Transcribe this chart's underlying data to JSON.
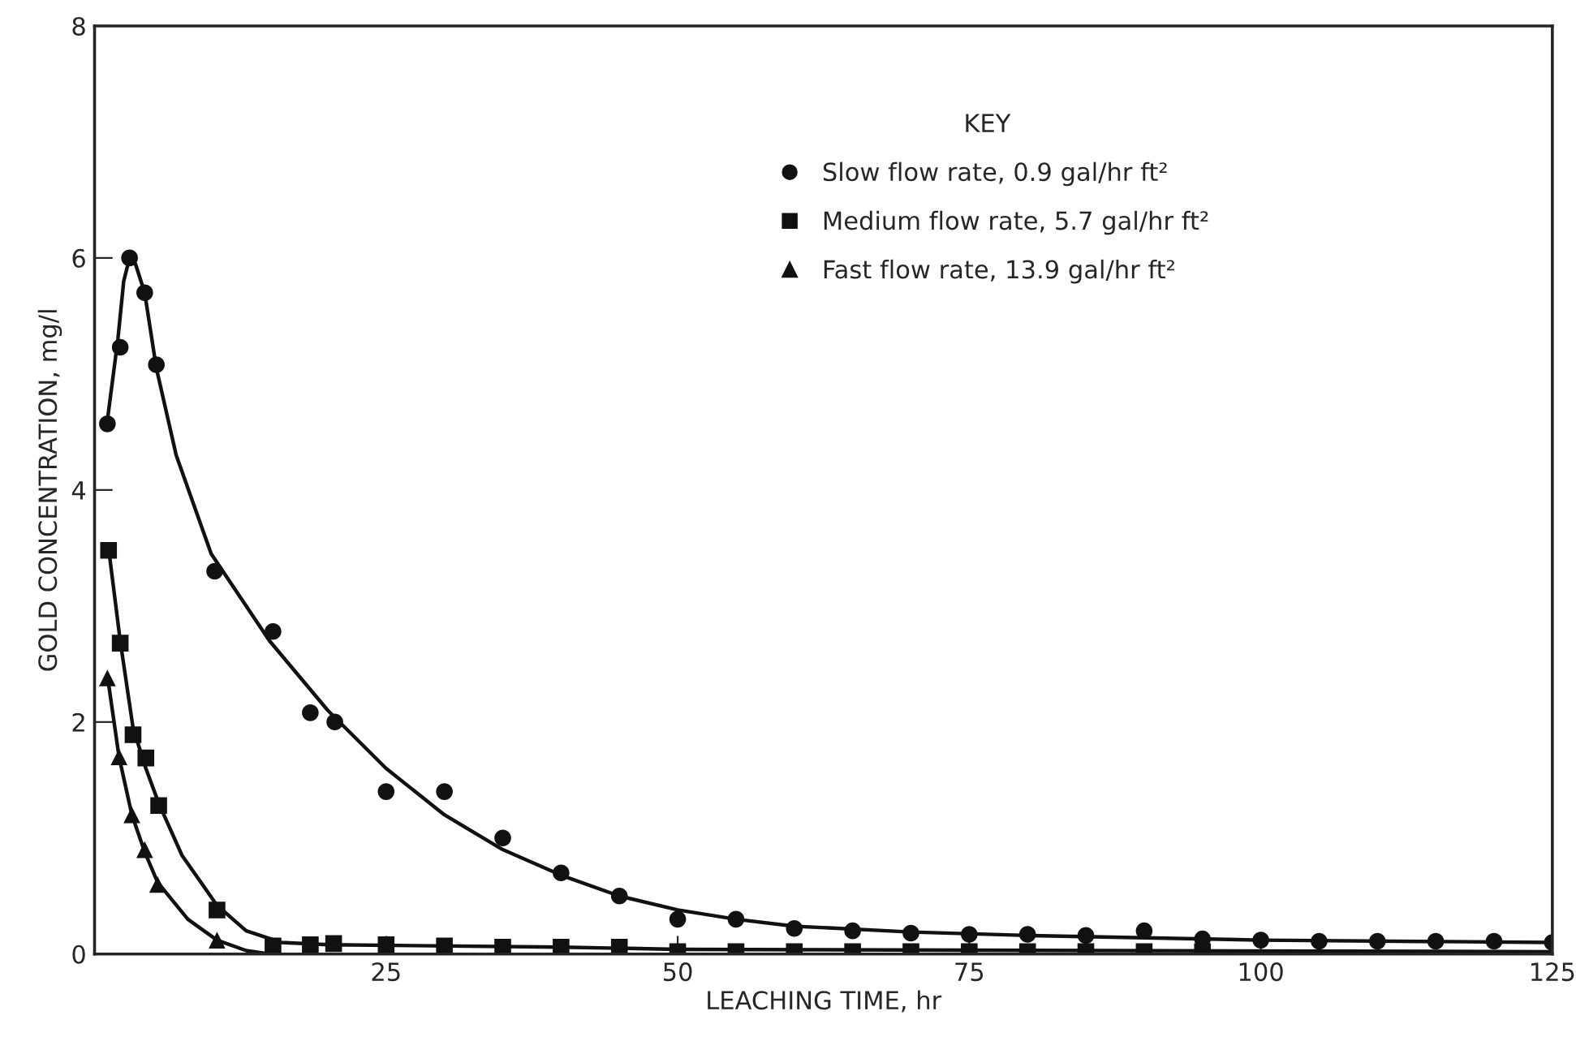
{
  "chart_data": {
    "type": "scatter",
    "xlabel": "LEACHING TIME, hr",
    "ylabel": "GOLD CONCENTRATION, mg/l",
    "legend_title": "KEY",
    "legend": "top right",
    "grid": false,
    "xlim": [
      0,
      125
    ],
    "xticks": [
      25,
      50,
      75,
      100,
      125
    ],
    "ylim": [
      0,
      8
    ],
    "yticks": [
      0,
      2,
      4,
      6,
      8
    ],
    "series": [
      {
        "name": "Slow flow rate, 0.9 gal/hr ft²",
        "color": "#111111",
        "marker": "circle",
        "x": [
          1.1,
          2.2,
          3,
          4.3,
          5.3,
          10.3,
          15.3,
          18.5,
          20.6,
          25,
          30,
          35,
          40,
          45,
          50,
          55,
          60,
          65,
          70,
          75,
          80,
          85,
          90,
          95,
          100,
          105,
          110,
          115,
          120,
          125
        ],
        "values": [
          4.57,
          5.23,
          6.0,
          5.7,
          5.08,
          3.3,
          2.78,
          2.08,
          2.0,
          1.4,
          1.4,
          1.0,
          0.7,
          0.5,
          0.3,
          0.3,
          0.22,
          0.2,
          0.18,
          0.17,
          0.17,
          0.16,
          0.2,
          0.13,
          0.12,
          0.11,
          0.11,
          0.11,
          0.11,
          0.1
        ]
      },
      {
        "name": "Medium flow rate, 5.7 gal/hr ft²",
        "color": "#111111",
        "marker": "square",
        "x": [
          1.2,
          2.2,
          3.3,
          4.4,
          5.5,
          10.5,
          15.3,
          18.5,
          20.5,
          25,
          30,
          35,
          40,
          45,
          50,
          55,
          60,
          65,
          70,
          75,
          80,
          85,
          90,
          95
        ],
        "values": [
          3.48,
          2.68,
          1.89,
          1.69,
          1.28,
          0.38,
          0.07,
          0.08,
          0.09,
          0.08,
          0.07,
          0.06,
          0.06,
          0.06,
          0.02,
          0.02,
          0.02,
          0.02,
          0.02,
          0.02,
          0.02,
          0.02,
          0.02,
          0.02
        ]
      },
      {
        "name": "Fast flow rate, 13.9 gal/hr ft²",
        "color": "#111111",
        "marker": "triangle",
        "x": [
          1.1,
          2.1,
          3.2,
          4.3,
          5.4,
          10.5
        ],
        "values": [
          2.38,
          1.7,
          1.2,
          0.9,
          0.6,
          0.12
        ]
      },
      {
        "type": "line",
        "color": "#111111",
        "marker": "none",
        "x": [
          1.1,
          2,
          2.5,
          3,
          3.5,
          4.3,
          5.3,
          7,
          10,
          15,
          20,
          25,
          30,
          35,
          40,
          45,
          50,
          55,
          60,
          70,
          80,
          100,
          125
        ],
        "values": [
          4.6,
          5.3,
          5.8,
          6.0,
          5.95,
          5.7,
          5.05,
          4.3,
          3.45,
          2.7,
          2.1,
          1.6,
          1.2,
          0.9,
          0.68,
          0.5,
          0.38,
          0.3,
          0.24,
          0.19,
          0.16,
          0.12,
          0.1
        ]
      },
      {
        "type": "line",
        "color": "#111111",
        "marker": "none",
        "x": [
          1.2,
          2.2,
          3.3,
          4.4,
          5.5,
          7.5,
          10.5,
          13,
          16,
          20,
          40,
          50,
          125
        ],
        "values": [
          3.5,
          2.7,
          1.95,
          1.6,
          1.3,
          0.85,
          0.42,
          0.2,
          0.1,
          0.08,
          0.06,
          0.04,
          0.02
        ]
      },
      {
        "type": "line",
        "color": "#111111",
        "marker": "none",
        "x": [
          1.1,
          2.1,
          3.2,
          4.3,
          5.4,
          8,
          10.5,
          13,
          15
        ],
        "values": [
          2.4,
          1.7,
          1.2,
          0.88,
          0.62,
          0.3,
          0.12,
          0.03,
          0.0
        ]
      }
    ]
  }
}
